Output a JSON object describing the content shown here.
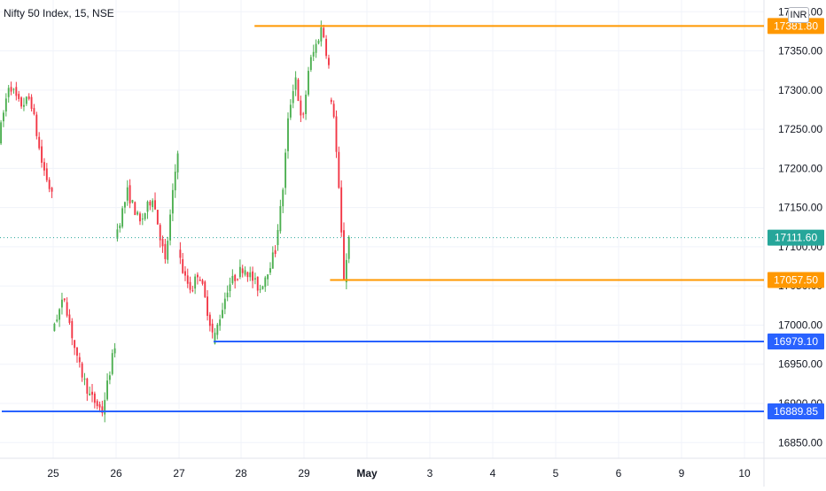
{
  "chart_data": {
    "type": "candlestick",
    "title": "Nifty 50 Index, 15, NSE",
    "currency": "INR",
    "ylim": [
      16830,
      17415
    ],
    "y_ticks": [
      {
        "value": 17400,
        "label": "17400.00"
      },
      {
        "value": 17350,
        "label": "17350.00"
      },
      {
        "value": 17300,
        "label": "17300.00"
      },
      {
        "value": 17250,
        "label": "17250.00"
      },
      {
        "value": 17200,
        "label": "17200.00"
      },
      {
        "value": 17150,
        "label": "17150.00"
      },
      {
        "value": 17100,
        "label": "17100.00"
      },
      {
        "value": 17050,
        "label": "17050.00"
      },
      {
        "value": 17000,
        "label": "17000.00"
      },
      {
        "value": 16950,
        "label": "16950.00"
      },
      {
        "value": 16900,
        "label": "16900.00"
      },
      {
        "value": 16850,
        "label": "16850.00"
      }
    ],
    "x_ticks": [
      "25",
      "26",
      "27",
      "28",
      "29",
      "May",
      "3",
      "4",
      "5",
      "6",
      "9",
      "10"
    ],
    "last_price": {
      "value": 17111.6,
      "label": "17111.60",
      "color": "#26a69a"
    },
    "horizontal_lines": [
      {
        "value": 17381.8,
        "label": "17381.80",
        "color": "#ff9800",
        "start_session": 3.2
      },
      {
        "value": 17057.5,
        "label": "17057.50",
        "color": "#ff9800",
        "start_session": 4.4
      },
      {
        "value": 16979.1,
        "label": "16979.10",
        "color": "#2962ff",
        "start_session": 2.55
      },
      {
        "value": 16889.85,
        "label": "16889.85",
        "color": "#2962ff",
        "start_session": -0.85
      }
    ],
    "colors": {
      "up": "#4caf50",
      "down": "#f23645",
      "grid": "#f0f3fa",
      "axis_text": "#131722"
    },
    "sessions": [
      {
        "start": 17235,
        "anchors": [
          17235,
          17310,
          17280,
          17290,
          17210,
          17165
        ]
      },
      {
        "start": 16995,
        "anchors": [
          16995,
          17035,
          16955,
          16910,
          16890,
          16975
        ]
      },
      {
        "start": 17110,
        "anchors": [
          17110,
          17170,
          17130,
          17165,
          17080,
          17225
        ]
      },
      {
        "start": 17095,
        "anchors": [
          17095,
          17060,
          17045,
          17070,
          17030,
          16990
        ]
      },
      {
        "start": 16975,
        "anchors": [
          16975,
          17050,
          17075,
          17045,
          17095
        ]
      },
      {
        "start": 17105,
        "anchors": [
          17105,
          17160,
          17270,
          17320,
          17250,
          17330,
          17355,
          17382,
          17330
        ]
      },
      {
        "start": 17290,
        "anchors": [
          17290,
          17270,
          17170,
          17060,
          17111.6
        ]
      }
    ]
  }
}
